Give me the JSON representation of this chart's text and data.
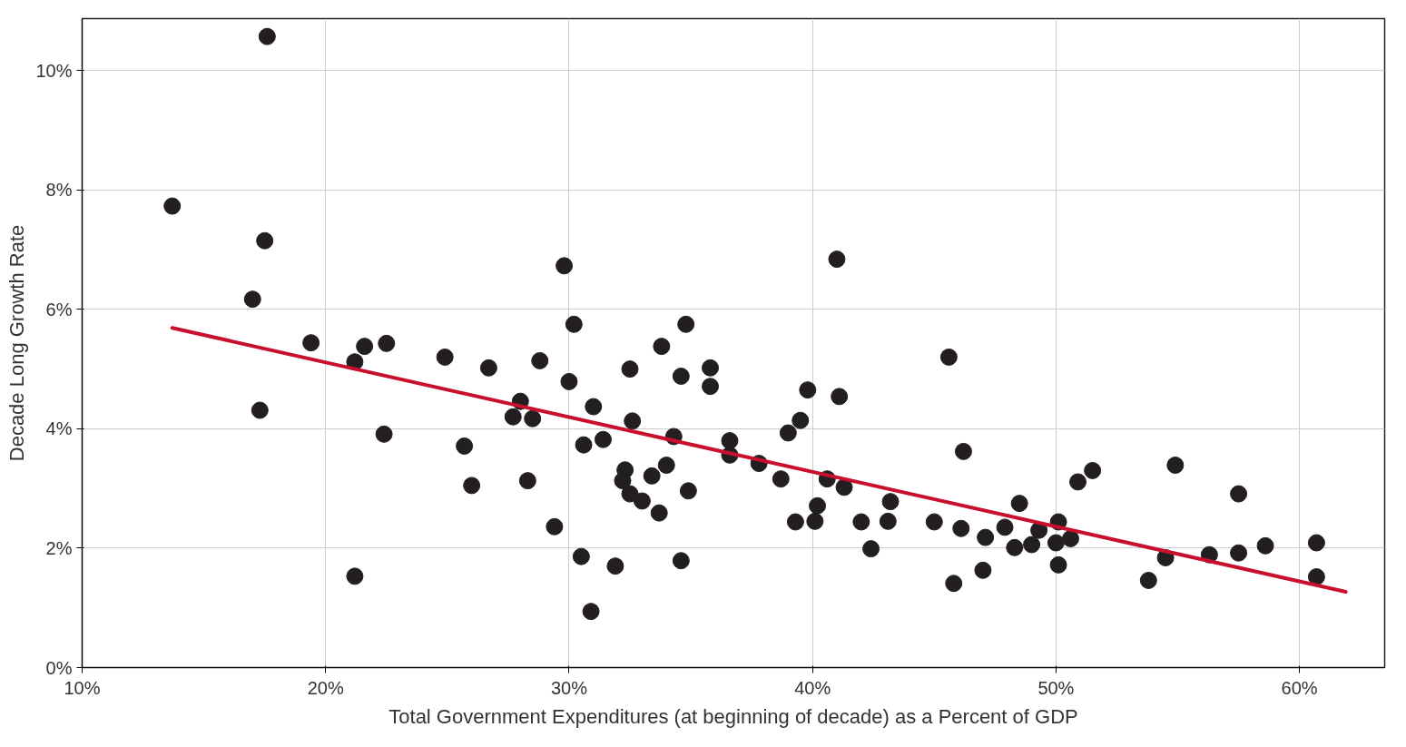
{
  "chart_data": {
    "type": "scatter",
    "xlabel": "Total Government Expenditures (at beginning of decade) as a Percent of GDP",
    "ylabel": "Decade Long Growth Rate",
    "xlim": [
      10,
      63.5
    ],
    "ylim": [
      0,
      10.87
    ],
    "xticks": [
      {
        "value": 10,
        "label": "10%"
      },
      {
        "value": 20,
        "label": "20%"
      },
      {
        "value": 30,
        "label": "30%"
      },
      {
        "value": 40,
        "label": "40%"
      },
      {
        "value": 50,
        "label": "50%"
      },
      {
        "value": 60,
        "label": "60%"
      }
    ],
    "yticks": [
      {
        "value": 0,
        "label": "0%"
      },
      {
        "value": 2,
        "label": "2%"
      },
      {
        "value": 4,
        "label": "4%"
      },
      {
        "value": 6,
        "label": "6%"
      },
      {
        "value": 8,
        "label": "8%"
      },
      {
        "value": 10,
        "label": "10%"
      }
    ],
    "grid": true,
    "marker": "circle",
    "series": [
      {
        "color": "#231f20",
        "x": [
          13.7,
          17.6,
          17.5,
          17.0,
          17.3,
          19.4,
          21.2,
          21.6,
          22.5,
          22.4,
          21.2,
          24.9,
          25.7,
          26.0,
          26.7,
          28.0,
          27.7,
          28.5,
          28.8,
          28.3,
          29.4,
          29.8,
          30.2,
          30.0,
          31.0,
          30.6,
          31.4,
          30.5,
          30.9,
          31.9,
          32.5,
          32.6,
          32.3,
          32.2,
          32.5,
          33.0,
          33.4,
          33.8,
          34.8,
          34.6,
          34.3,
          34.0,
          33.7,
          34.9,
          34.6,
          35.8,
          35.8,
          36.6,
          36.6,
          37.8,
          38.7,
          39.0,
          39.5,
          39.8,
          41.0,
          41.1,
          40.6,
          41.3,
          40.2,
          39.3,
          40.1,
          42.0,
          42.4,
          43.1,
          43.2,
          45.0,
          45.6,
          46.2,
          46.1,
          45.8,
          47.1,
          47.0,
          47.9,
          48.5,
          48.3,
          49.0,
          49.3,
          50.1,
          50.0,
          50.1,
          50.6,
          50.9,
          51.5,
          53.8,
          54.5,
          54.9,
          56.3,
          57.5,
          57.5,
          58.6,
          60.7,
          60.7
        ],
        "values": [
          7.73,
          10.57,
          7.15,
          6.17,
          4.31,
          5.44,
          5.12,
          5.38,
          5.43,
          3.91,
          1.53,
          5.2,
          3.71,
          3.05,
          5.02,
          4.46,
          4.2,
          4.17,
          5.14,
          3.13,
          2.36,
          6.73,
          5.75,
          4.79,
          4.37,
          3.73,
          3.82,
          1.86,
          0.94,
          1.7,
          5.0,
          4.13,
          3.31,
          3.13,
          2.91,
          2.79,
          3.21,
          5.38,
          5.75,
          4.88,
          3.87,
          3.39,
          2.59,
          2.96,
          1.79,
          5.02,
          4.71,
          3.8,
          3.56,
          3.42,
          3.16,
          3.93,
          4.14,
          4.65,
          6.84,
          4.54,
          3.16,
          3.02,
          2.71,
          2.44,
          2.45,
          2.44,
          1.99,
          2.45,
          2.78,
          2.44,
          5.2,
          3.62,
          2.33,
          1.41,
          2.18,
          1.63,
          2.35,
          2.75,
          2.01,
          2.06,
          2.3,
          2.44,
          2.09,
          1.72,
          2.16,
          3.11,
          3.3,
          1.46,
          1.84,
          3.39,
          1.89,
          2.91,
          1.92,
          2.04,
          2.09,
          1.52
        ]
      },
      {
        "type": "line",
        "marker": "none",
        "color": "#c8102e",
        "x": [
          13.7,
          61.9
        ],
        "values": [
          5.69,
          1.27
        ]
      }
    ]
  }
}
